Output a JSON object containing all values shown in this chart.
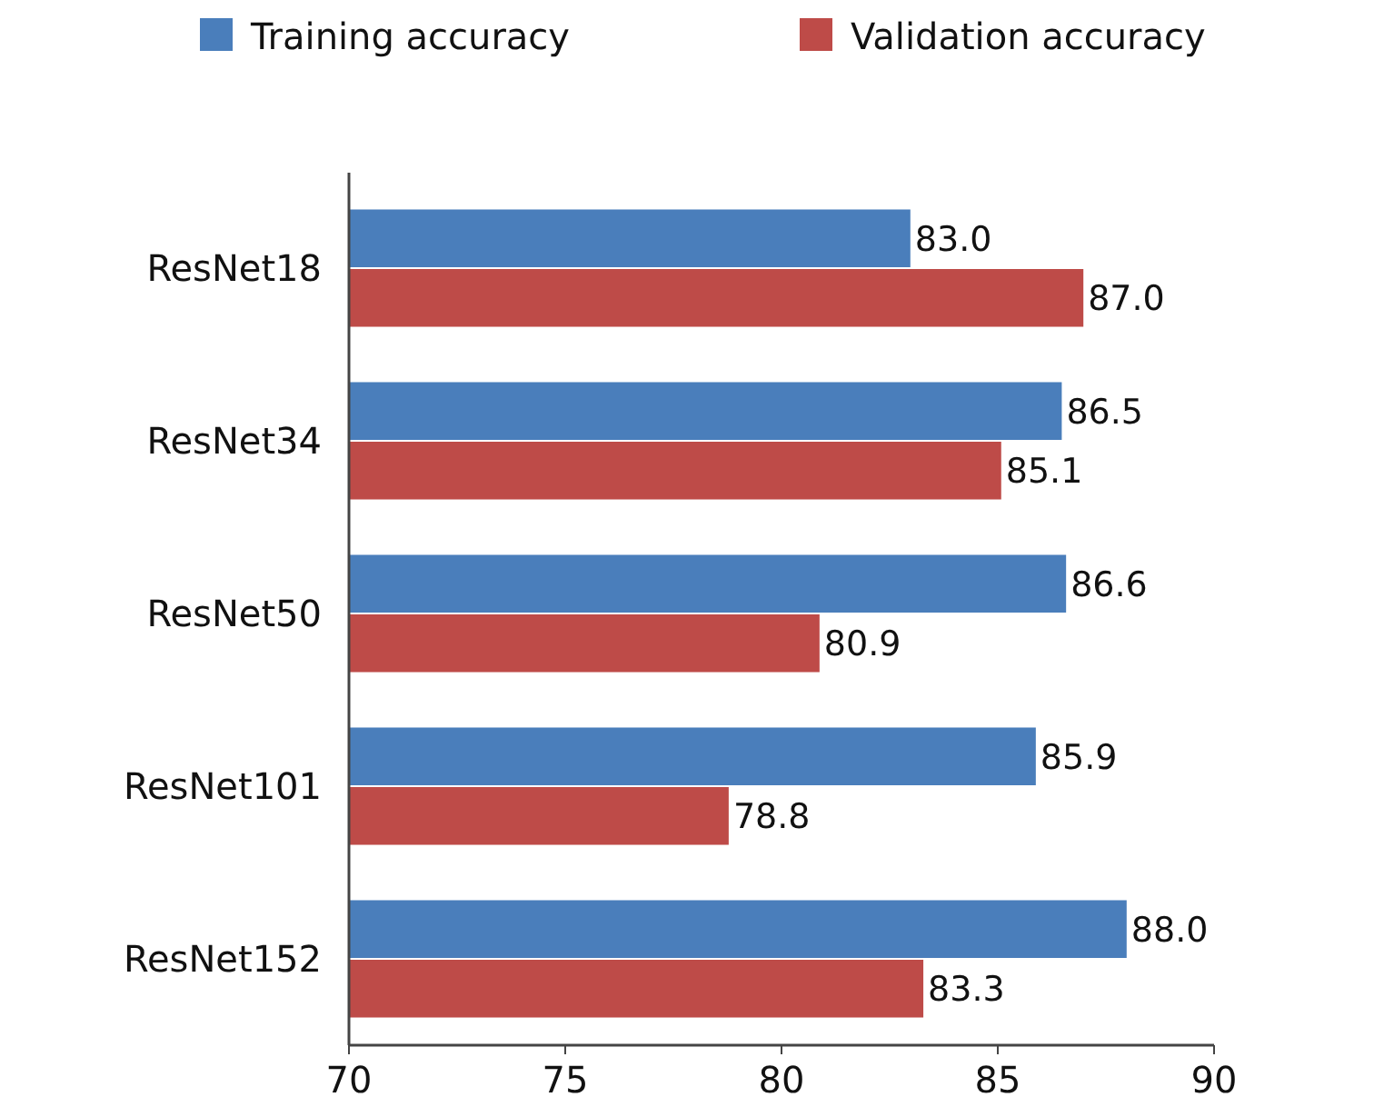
{
  "chart_data": {
    "type": "bar",
    "orientation": "horizontal",
    "categories": [
      "ResNet18",
      "ResNet34",
      "ResNet50",
      "ResNet101",
      "ResNet152"
    ],
    "series": [
      {
        "name": "Training accuracy",
        "color": "#4a7ebb",
        "values": [
          83.0,
          86.5,
          86.6,
          85.9,
          88.0
        ],
        "value_labels": [
          "83.0",
          "86.5",
          "86.6",
          "85.9",
          "88.0"
        ]
      },
      {
        "name": "Validation accuracy",
        "color": "#be4b48",
        "values": [
          87.0,
          85.1,
          80.9,
          78.8,
          83.3
        ],
        "value_labels": [
          "87.0",
          "85.1",
          "80.9",
          "78.8",
          "83.3"
        ]
      }
    ],
    "xlim": [
      70,
      90
    ],
    "xticks": [
      70,
      75,
      80,
      85,
      90
    ],
    "grid": false,
    "legend": "top"
  }
}
